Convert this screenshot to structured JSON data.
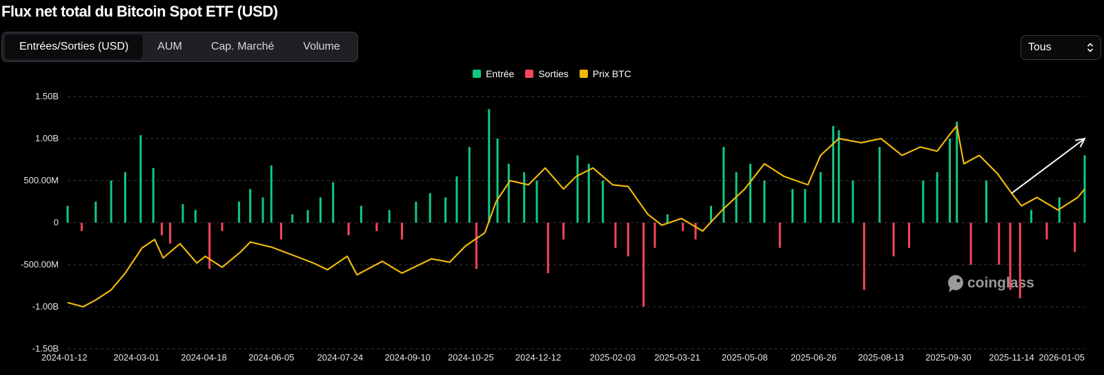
{
  "title": "Flux net total du Bitcoin Spot ETF (USD)",
  "tabs": [
    {
      "label": "Entrées/Sorties (USD)",
      "active": true
    },
    {
      "label": "AUM",
      "active": false
    },
    {
      "label": "Cap. Marché",
      "active": false
    },
    {
      "label": "Volume",
      "active": false
    }
  ],
  "range_select": {
    "value": "Tous"
  },
  "watermark": "coinglass",
  "colors": {
    "inflow": "#0ecb81",
    "outflow": "#f6465d",
    "price": "#f0b90b",
    "grid": "#3a3a3a",
    "arrow": "#ffffff"
  },
  "chart_data": {
    "type": "bar",
    "legend": [
      {
        "name": "Entrée",
        "color": "#0ecb81"
      },
      {
        "name": "Sorties",
        "color": "#f6465d"
      },
      {
        "name": "Prix BTC",
        "color": "#f0b90b"
      }
    ],
    "legend_position": "top-center",
    "grid": true,
    "y_axis": {
      "unit": "USD",
      "min": -1500000000,
      "max": 1500000000,
      "ticks": [
        {
          "value": 1500000000,
          "label": "1.50B"
        },
        {
          "value": 1000000000,
          "label": "1.00B"
        },
        {
          "value": 500000000,
          "label": "500.00M"
        },
        {
          "value": 0,
          "label": "0"
        },
        {
          "value": -500000000,
          "label": "-500.00M"
        },
        {
          "value": -1000000000,
          "label": "-1.00B"
        },
        {
          "value": -1500000000,
          "label": "-1.50B"
        }
      ]
    },
    "x_axis": {
      "ticks": [
        "2024-01-12",
        "2024-03-01",
        "2024-04-18",
        "2024-06-05",
        "2024-07-24",
        "2024-09-10",
        "2024-10-25",
        "2024-12-12",
        "2025-02-03",
        "2025-03-21",
        "2025-05-08",
        "2025-06-26",
        "2025-08-13",
        "2025-09-30",
        "2025-11-14",
        "2026-01-05"
      ]
    },
    "series": [
      {
        "name": "Entrée / Sorties",
        "kind": "bar",
        "dates": [
          "2024-01-12",
          "2024-01-22",
          "2024-02-01",
          "2024-02-12",
          "2024-02-22",
          "2024-03-04",
          "2024-03-13",
          "2024-03-19",
          "2024-03-25",
          "2024-04-03",
          "2024-04-12",
          "2024-04-22",
          "2024-05-01",
          "2024-05-13",
          "2024-05-21",
          "2024-05-30",
          "2024-06-05",
          "2024-06-12",
          "2024-06-20",
          "2024-07-01",
          "2024-07-10",
          "2024-07-19",
          "2024-07-30",
          "2024-08-08",
          "2024-08-19",
          "2024-08-28",
          "2024-09-06",
          "2024-09-16",
          "2024-09-26",
          "2024-10-07",
          "2024-10-15",
          "2024-10-24",
          "2024-10-29",
          "2024-11-07",
          "2024-11-13",
          "2024-11-21",
          "2024-12-02",
          "2024-12-11",
          "2024-12-19",
          "2024-12-30",
          "2025-01-09",
          "2025-01-17",
          "2025-01-27",
          "2025-02-05",
          "2025-02-14",
          "2025-02-25",
          "2025-03-05",
          "2025-03-14",
          "2025-03-25",
          "2025-04-03",
          "2025-04-14",
          "2025-04-23",
          "2025-05-02",
          "2025-05-12",
          "2025-05-22",
          "2025-06-02",
          "2025-06-11",
          "2025-06-20",
          "2025-07-01",
          "2025-07-10",
          "2025-07-14",
          "2025-07-24",
          "2025-08-01",
          "2025-08-12",
          "2025-08-22",
          "2025-09-02",
          "2025-09-12",
          "2025-09-22",
          "2025-10-01",
          "2025-10-06",
          "2025-10-16",
          "2025-10-27",
          "2025-11-05",
          "2025-11-13",
          "2025-11-20",
          "2025-11-28",
          "2025-12-09",
          "2025-12-18",
          "2025-12-29",
          "2026-01-05"
        ],
        "values": [
          200000000,
          -100000000,
          250000000,
          500000000,
          600000000,
          1040000000,
          650000000,
          -150000000,
          -250000000,
          220000000,
          150000000,
          -550000000,
          -100000000,
          250000000,
          400000000,
          300000000,
          680000000,
          -200000000,
          100000000,
          150000000,
          300000000,
          480000000,
          -150000000,
          200000000,
          -100000000,
          150000000,
          -200000000,
          250000000,
          350000000,
          300000000,
          550000000,
          900000000,
          -550000000,
          1350000000,
          1000000000,
          700000000,
          600000000,
          500000000,
          -600000000,
          -200000000,
          800000000,
          700000000,
          500000000,
          -300000000,
          -400000000,
          -1000000000,
          -300000000,
          100000000,
          -100000000,
          -200000000,
          200000000,
          900000000,
          600000000,
          700000000,
          500000000,
          -300000000,
          400000000,
          400000000,
          600000000,
          1150000000,
          1100000000,
          500000000,
          -800000000,
          900000000,
          -400000000,
          -300000000,
          500000000,
          600000000,
          1000000000,
          1200000000,
          -500000000,
          500000000,
          -500000000,
          -800000000,
          -900000000,
          150000000,
          -200000000,
          300000000,
          -350000000,
          800000000
        ]
      },
      {
        "name": "Prix BTC",
        "kind": "line",
        "dates": [
          "2024-01-12",
          "2024-01-23",
          "2024-02-01",
          "2024-02-12",
          "2024-02-22",
          "2024-03-05",
          "2024-03-14",
          "2024-03-20",
          "2024-04-01",
          "2024-04-13",
          "2024-04-19",
          "2024-05-01",
          "2024-05-14",
          "2024-05-21",
          "2024-06-05",
          "2024-06-24",
          "2024-07-05",
          "2024-07-15",
          "2024-07-29",
          "2024-08-05",
          "2024-08-23",
          "2024-09-06",
          "2024-09-27",
          "2024-10-10",
          "2024-10-21",
          "2024-11-04",
          "2024-11-12",
          "2024-11-22",
          "2024-12-05",
          "2024-12-17",
          "2024-12-30",
          "2025-01-08",
          "2025-01-20",
          "2025-02-03",
          "2025-02-14",
          "2025-02-28",
          "2025-03-10",
          "2025-03-24",
          "2025-04-08",
          "2025-04-22",
          "2025-05-08",
          "2025-05-22",
          "2025-06-05",
          "2025-06-22",
          "2025-07-01",
          "2025-07-14",
          "2025-07-30",
          "2025-08-13",
          "2025-08-28",
          "2025-09-10",
          "2025-09-22",
          "2025-10-01",
          "2025-10-06",
          "2025-10-11",
          "2025-10-22",
          "2025-11-04",
          "2025-11-14",
          "2025-11-21",
          "2025-12-02",
          "2025-12-17",
          "2025-12-31",
          "2026-01-05"
        ],
        "values": [
          -950000000,
          -1000000000,
          -920000000,
          -800000000,
          -600000000,
          -300000000,
          -200000000,
          -420000000,
          -250000000,
          -480000000,
          -400000000,
          -530000000,
          -350000000,
          -230000000,
          -290000000,
          -410000000,
          -480000000,
          -560000000,
          -400000000,
          -620000000,
          -460000000,
          -600000000,
          -430000000,
          -470000000,
          -280000000,
          -120000000,
          250000000,
          500000000,
          450000000,
          650000000,
          400000000,
          550000000,
          650000000,
          450000000,
          430000000,
          100000000,
          -30000000,
          50000000,
          -100000000,
          150000000,
          400000000,
          700000000,
          550000000,
          450000000,
          800000000,
          1000000000,
          950000000,
          1000000000,
          800000000,
          900000000,
          850000000,
          1050000000,
          1150000000,
          700000000,
          800000000,
          580000000,
          350000000,
          200000000,
          300000000,
          150000000,
          300000000,
          400000000
        ]
      }
    ],
    "annotations": [
      {
        "type": "arrow",
        "from": {
          "date": "2025-11-14",
          "value": 350000000
        },
        "to": {
          "date": "2026-01-05",
          "value": 1000000000
        }
      }
    ]
  }
}
